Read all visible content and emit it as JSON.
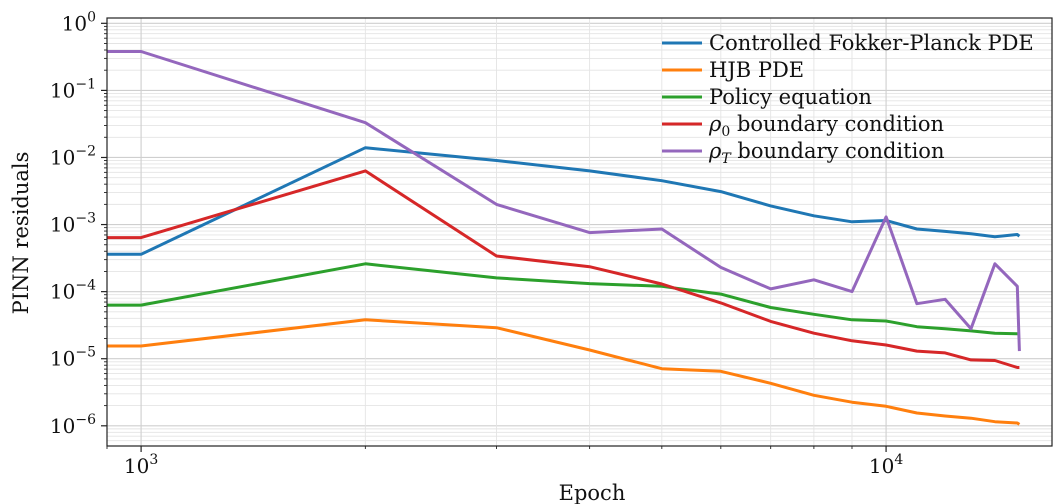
{
  "chart_data": {
    "type": "line",
    "xlabel": "Epoch",
    "ylabel": "PINN residuals",
    "xscale": "log",
    "yscale": "log",
    "xlim": [
      900,
      16700
    ],
    "ylim": [
      5e-07,
      1.2
    ],
    "grid": true,
    "legend_position": "top-right",
    "x_ticks": [
      {
        "value": 1000,
        "base": "10",
        "exp": "3"
      },
      {
        "value": 10000,
        "base": "10",
        "exp": "4"
      }
    ],
    "y_ticks": [
      {
        "value": 1,
        "base": "10",
        "exp": "0"
      },
      {
        "value": 0.1,
        "base": "10",
        "exp": "−1"
      },
      {
        "value": 0.01,
        "base": "10",
        "exp": "−2"
      },
      {
        "value": 0.001,
        "base": "10",
        "exp": "−3"
      },
      {
        "value": 0.0001,
        "base": "10",
        "exp": "−4"
      },
      {
        "value": 1e-05,
        "base": "10",
        "exp": "−5"
      },
      {
        "value": 1e-06,
        "base": "10",
        "exp": "−6"
      }
    ],
    "series": [
      {
        "name": "Controlled Fokker-Planck PDE",
        "color": "#1f77b4",
        "x": [
          900,
          1000,
          2000,
          3000,
          4000,
          5000,
          6000,
          7000,
          8000,
          9000,
          10000,
          11000,
          12000,
          13000,
          14000,
          15000,
          15100
        ],
        "y": [
          0.00036,
          0.00036,
          0.014,
          0.009,
          0.0063,
          0.0045,
          0.0031,
          0.0019,
          0.00135,
          0.0011,
          0.00115,
          0.00086,
          0.00079,
          0.00073,
          0.00066,
          0.00071,
          0.00067
        ]
      },
      {
        "name": "HJB PDE",
        "color": "#ff7f0e",
        "x": [
          900,
          1000,
          2000,
          3000,
          4000,
          5000,
          6000,
          7000,
          8000,
          9000,
          10000,
          11000,
          12000,
          13000,
          14000,
          15000,
          15100
        ],
        "y": [
          1.55e-05,
          1.55e-05,
          3.8e-05,
          2.9e-05,
          1.35e-05,
          7.1e-06,
          6.5e-06,
          4.3e-06,
          2.85e-06,
          2.25e-06,
          1.95e-06,
          1.55e-06,
          1.4e-06,
          1.3e-06,
          1.15e-06,
          1.1e-06,
          1.05e-06
        ]
      },
      {
        "name": "Policy equation",
        "color": "#2ca02c",
        "x": [
          900,
          1000,
          2000,
          3000,
          4000,
          5000,
          6000,
          7000,
          8000,
          9000,
          10000,
          11000,
          12000,
          13000,
          14000,
          15000,
          15100
        ],
        "y": [
          6.3e-05,
          6.3e-05,
          0.00026,
          0.00016,
          0.000132,
          0.00012,
          9.2e-05,
          5.8e-05,
          4.6e-05,
          3.8e-05,
          3.65e-05,
          3e-05,
          2.8e-05,
          2.6e-05,
          2.4e-05,
          2.35e-05,
          2.35e-05
        ]
      },
      {
        "name": "ρ0 boundary condition",
        "label_main": "ρ",
        "label_sub": "0",
        "label_rest": " boundary condition",
        "color": "#d62728",
        "x": [
          900,
          1000,
          2000,
          3000,
          4000,
          5000,
          6000,
          7000,
          8000,
          9000,
          10000,
          11000,
          12000,
          13000,
          14000,
          15000,
          15100
        ],
        "y": [
          0.00064,
          0.00064,
          0.0063,
          0.00034,
          0.000235,
          0.00013,
          6.8e-05,
          3.6e-05,
          2.4e-05,
          1.85e-05,
          1.6e-05,
          1.3e-05,
          1.22e-05,
          9.6e-06,
          9.4e-06,
          7.4e-06,
          7.4e-06
        ]
      },
      {
        "name": "ρT boundary condition",
        "label_main": "ρ",
        "label_sub": "T",
        "label_rest": " boundary condition",
        "color": "#9467bd",
        "x": [
          900,
          1000,
          2000,
          3000,
          4000,
          5000,
          6000,
          7000,
          8000,
          9000,
          10000,
          11000,
          12000,
          13000,
          14000,
          15000,
          15100
        ],
        "y": [
          0.38,
          0.38,
          0.033,
          0.002,
          0.00076,
          0.00086,
          0.00023,
          0.00011,
          0.00015,
          0.0001,
          0.0013,
          6.6e-05,
          7.7e-05,
          2.8e-05,
          0.00026,
          0.00012,
          1.3e-05
        ]
      }
    ]
  }
}
